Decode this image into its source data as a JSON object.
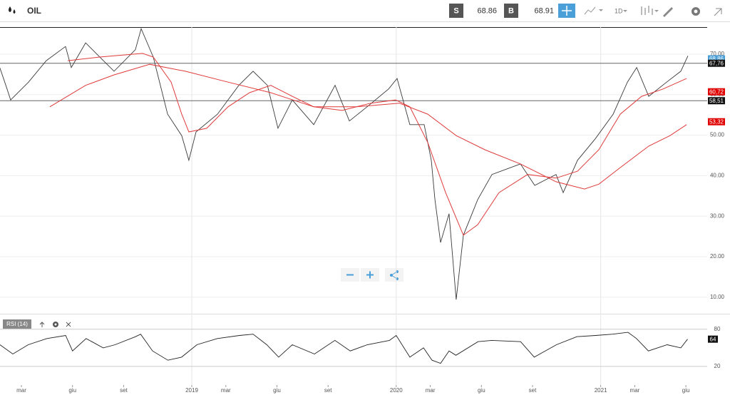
{
  "header": {
    "symbol": "OIL",
    "sell_label": "S",
    "sell_price": "68.86",
    "buy_label": "B",
    "buy_price": "68.91",
    "timeframe": "1D"
  },
  "chart_data": [
    {
      "type": "line",
      "xlim": [
        0.745,
        42.25
      ],
      "ylim": [
        6.44,
        76.69
      ],
      "xticks": [
        {
          "value": 2,
          "label": "mar"
        },
        {
          "value": 5,
          "label": "giu"
        },
        {
          "value": 8,
          "label": "set"
        },
        {
          "value": 12,
          "label": "2019"
        },
        {
          "value": 14,
          "label": "mar"
        },
        {
          "value": 17,
          "label": "giu"
        },
        {
          "value": 20,
          "label": "set"
        },
        {
          "value": 24,
          "label": "2020"
        },
        {
          "value": 26,
          "label": "mar"
        },
        {
          "value": 29,
          "label": "giu"
        },
        {
          "value": 32,
          "label": "set"
        },
        {
          "value": 36,
          "label": "2021"
        },
        {
          "value": 38,
          "label": "mar"
        },
        {
          "value": 41,
          "label": "giu"
        }
      ],
      "yticks": [
        {
          "value": 10,
          "label": "10.00"
        },
        {
          "value": 20,
          "label": "20.00"
        },
        {
          "value": 30,
          "label": "30.00"
        },
        {
          "value": 40,
          "label": "40.00"
        },
        {
          "value": 50,
          "label": "50.00"
        },
        {
          "value": 60,
          "label": "60.00"
        },
        {
          "value": 70,
          "label": "70.00"
        }
      ],
      "grid": true,
      "series": [
        {
          "color": "#3a3a3a",
          "x": [
            0.74,
            1.16,
            1.37,
            2.42,
            3.46,
            4.59,
            4.93,
            5.77,
            6.81,
            7.44,
            8.69,
            9.03,
            9.74,
            10.58,
            11.41,
            11.83,
            12.25,
            13.51,
            14.76,
            15.6,
            16.44,
            17.06,
            17.9,
            19.16,
            20.41,
            21.25,
            22.29,
            23.55,
            24.05,
            24.8,
            25.64,
            26.06,
            26.27,
            26.6,
            27.1,
            27.52,
            27.94,
            28.78,
            29.62,
            31.29,
            32.13,
            33.38,
            33.8,
            34.64,
            35.68,
            36.73,
            37.57,
            38.11,
            38.82,
            39.87,
            40.7,
            41.12
          ],
          "values": [
            66.6,
            61.4,
            58.7,
            63.1,
            68.4,
            71.9,
            66.7,
            72.8,
            68.4,
            65.8,
            71.1,
            76.3,
            69.3,
            55.2,
            49.9,
            43.8,
            50.8,
            55.2,
            62.3,
            65.8,
            62.3,
            51.7,
            58.7,
            52.6,
            62.3,
            53.5,
            57.0,
            61.4,
            64.0,
            52.6,
            52.6,
            43.8,
            34.1,
            23.5,
            30.6,
            9.4,
            25.3,
            34.1,
            40.3,
            42.9,
            37.6,
            40.3,
            35.8,
            43.8,
            49.1,
            55.2,
            63.1,
            66.7,
            59.6,
            63.1,
            65.8,
            69.6
          ]
        },
        {
          "color": "#e03a3a",
          "x": [
            4.72,
            6.6,
            9.11,
            9.74,
            10.79,
            11.41,
            11.83,
            12.88,
            14.13,
            15.39,
            16.64,
            17.9,
            19.16,
            20.83,
            22.5,
            23.97,
            24.8,
            25.85,
            26.9,
            27.94,
            28.78,
            30.03,
            31.71,
            33.38,
            34.64,
            35.89,
            37.15,
            38.4,
            39.66,
            41.04
          ],
          "values": [
            68.4,
            69.3,
            70.2,
            69.3,
            63.1,
            55.2,
            50.8,
            51.7,
            57.0,
            60.5,
            62.3,
            59.6,
            57.0,
            56.1,
            57.9,
            58.7,
            57.0,
            48.2,
            35.8,
            25.3,
            27.9,
            35.8,
            40.3,
            39.4,
            41.1,
            46.4,
            55.2,
            59.6,
            61.4,
            64.0
          ]
        },
        {
          "color": "#e03a3a",
          "x": [
            3.67,
            5.77,
            7.44,
            9.53,
            11.62,
            14.13,
            16.64,
            19.16,
            21.67,
            24.18,
            25.85,
            27.52,
            29.2,
            31.29,
            33.38,
            35.05,
            35.89,
            37.15,
            38.82,
            40.07,
            41.04
          ],
          "values": [
            57.0,
            62.3,
            64.9,
            67.5,
            65.8,
            63.1,
            60.5,
            57.0,
            57.0,
            57.9,
            55.2,
            49.9,
            46.4,
            42.9,
            38.5,
            36.7,
            37.9,
            42.0,
            47.3,
            49.9,
            52.6
          ]
        }
      ],
      "levels": [
        {
          "value": 68.86,
          "label": "68,86",
          "color": "#4a9fd8",
          "line": false
        },
        {
          "value": 67.76,
          "label": "67,76",
          "color": "#111111",
          "line": true
        },
        {
          "value": 60.72,
          "label": "60,72",
          "color": "#e00000",
          "line": false
        },
        {
          "value": 58.51,
          "label": "58,51",
          "color": "#111111",
          "line": true
        },
        {
          "value": 53.32,
          "label": "53,32",
          "color": "#e00000",
          "line": false
        }
      ]
    },
    {
      "type": "line",
      "title": "RSI (14)",
      "xlim": [
        0.745,
        42.25
      ],
      "ylim": [
        -10,
        97
      ],
      "yticks": [
        20,
        80
      ],
      "series": [
        {
          "color": "#222222",
          "x": [
            0.74,
            1.5,
            2.4,
            3.5,
            4.6,
            5.0,
            5.8,
            6.8,
            7.5,
            8.7,
            9.0,
            9.7,
            10.6,
            11.4,
            12.3,
            13.5,
            14.8,
            15.6,
            16.4,
            17.1,
            17.9,
            19.2,
            20.4,
            21.3,
            22.3,
            23.6,
            24.0,
            24.8,
            25.6,
            26.1,
            26.6,
            27.1,
            27.5,
            28.8,
            29.6,
            31.3,
            32.1,
            33.4,
            34.6,
            35.7,
            36.7,
            37.6,
            38.1,
            38.8,
            39.9,
            40.7,
            41.1
          ],
          "values": [
            55,
            40,
            55,
            65,
            70,
            45,
            65,
            50,
            55,
            68,
            72,
            45,
            30,
            35,
            55,
            65,
            70,
            72,
            55,
            35,
            55,
            40,
            62,
            45,
            55,
            62,
            70,
            35,
            50,
            30,
            25,
            45,
            38,
            60,
            62,
            60,
            35,
            55,
            68,
            70,
            72,
            75,
            65,
            45,
            55,
            50,
            64
          ],
          "last_value": 64
        }
      ]
    }
  ]
}
